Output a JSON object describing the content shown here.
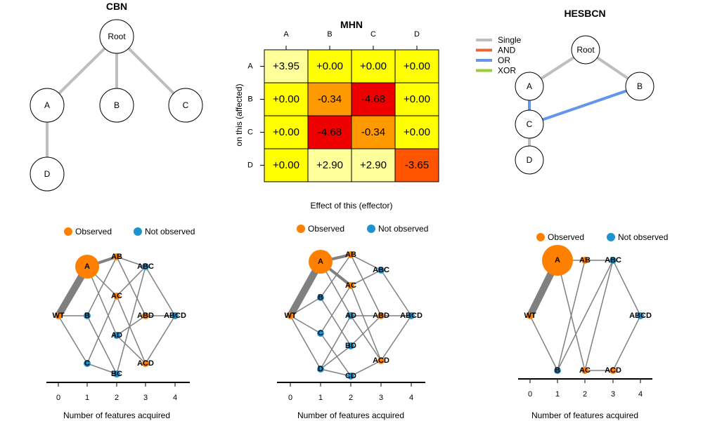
{
  "cbn": {
    "title": "CBN",
    "nodes": [
      {
        "id": "Root",
        "label": "Root"
      },
      {
        "id": "A",
        "label": "A"
      },
      {
        "id": "B",
        "label": "B"
      },
      {
        "id": "C",
        "label": "C"
      },
      {
        "id": "D",
        "label": "D"
      }
    ],
    "edges": [
      [
        "Root",
        "A"
      ],
      [
        "Root",
        "B"
      ],
      [
        "Root",
        "C"
      ],
      [
        "A",
        "D"
      ]
    ],
    "edge_color": "#BEBEBE"
  },
  "mhn": {
    "title": "MHN",
    "col_labels": [
      "A",
      "B",
      "C",
      "D"
    ],
    "row_labels": [
      "A",
      "B",
      "C",
      "D"
    ],
    "values": [
      [
        "+3.95",
        "+0.00",
        "+0.00",
        "+0.00"
      ],
      [
        "+0.00",
        "-0.34",
        "-4.68",
        "+0.00"
      ],
      [
        "+0.00",
        "-4.68",
        "-0.34",
        "+0.00"
      ],
      [
        "+0.00",
        "+2.90",
        "+2.90",
        "-3.65"
      ]
    ],
    "colors": [
      [
        "#FFFF99",
        "#FFFF00",
        "#FFFF00",
        "#FFFF00"
      ],
      [
        "#FFFF00",
        "#FF9900",
        "#EE0000",
        "#FFFF00"
      ],
      [
        "#FFFF00",
        "#EE0000",
        "#FF9900",
        "#FFFF00"
      ],
      [
        "#FFFF00",
        "#FFFF99",
        "#FFFF99",
        "#FF5500"
      ]
    ],
    "xlabel": "Effect of this (effector)",
    "ylabel": "on this (affected)"
  },
  "hesbcn": {
    "title": "HESBCN",
    "legend": [
      {
        "label": "Single",
        "color": "#BEBEBE"
      },
      {
        "label": "AND",
        "color": "#E8673A"
      },
      {
        "label": "OR",
        "color": "#6495ED"
      },
      {
        "label": "XOR",
        "color": "#9ACD32"
      }
    ],
    "nodes": [
      {
        "id": "Root",
        "label": "Root"
      },
      {
        "id": "A",
        "label": "A"
      },
      {
        "id": "B",
        "label": "B"
      },
      {
        "id": "C",
        "label": "C"
      },
      {
        "id": "D",
        "label": "D"
      }
    ],
    "edges": [
      {
        "from": "Root",
        "to": "A",
        "type": "Single"
      },
      {
        "from": "Root",
        "to": "B",
        "type": "Single"
      },
      {
        "from": "A",
        "to": "C",
        "type": "OR"
      },
      {
        "from": "B",
        "to": "C",
        "type": "OR"
      },
      {
        "from": "C",
        "to": "D",
        "type": "Single"
      }
    ]
  },
  "legend_common": {
    "observed": "Observed",
    "not_observed": "Not observed",
    "observed_color": "#FF7F00",
    "not_observed_color": "#1F93D0"
  },
  "graphs": [
    {
      "xlabel": "Number of features acquired",
      "ticks": [
        "0",
        "1",
        "2",
        "3",
        "4"
      ],
      "nodes": [
        {
          "label": "WT",
          "observed": true
        },
        {
          "label": "A",
          "observed": true,
          "big": true
        },
        {
          "label": "B",
          "observed": false
        },
        {
          "label": "C",
          "observed": false
        },
        {
          "label": "AB",
          "observed": true
        },
        {
          "label": "AC",
          "observed": true
        },
        {
          "label": "AD",
          "observed": false
        },
        {
          "label": "BC",
          "observed": false
        },
        {
          "label": "ABC",
          "observed": false
        },
        {
          "label": "ABD",
          "observed": true
        },
        {
          "label": "ACD",
          "observed": true
        },
        {
          "label": "ABCD",
          "observed": false
        }
      ],
      "edges": [
        {
          "from": "WT",
          "to": "A",
          "w": 4
        },
        {
          "from": "WT",
          "to": "B",
          "w": 1
        },
        {
          "from": "WT",
          "to": "C",
          "w": 1
        },
        {
          "from": "A",
          "to": "AB",
          "w": 2
        },
        {
          "from": "A",
          "to": "AC",
          "w": 1
        },
        {
          "from": "A",
          "to": "AD",
          "w": 1
        },
        {
          "from": "B",
          "to": "AB",
          "w": 1
        },
        {
          "from": "B",
          "to": "BC",
          "w": 1
        },
        {
          "from": "C",
          "to": "AC",
          "w": 1
        },
        {
          "from": "C",
          "to": "BC",
          "w": 1
        },
        {
          "from": "AB",
          "to": "ABC",
          "w": 1
        },
        {
          "from": "AB",
          "to": "ABD",
          "w": 1
        },
        {
          "from": "AC",
          "to": "ABC",
          "w": 1
        },
        {
          "from": "AC",
          "to": "ACD",
          "w": 1
        },
        {
          "from": "AD",
          "to": "ABD",
          "w": 1
        },
        {
          "from": "AD",
          "to": "ACD",
          "w": 1
        },
        {
          "from": "BC",
          "to": "ABC",
          "w": 1
        },
        {
          "from": "ABC",
          "to": "ABCD",
          "w": 1
        },
        {
          "from": "ABD",
          "to": "ABCD",
          "w": 1
        },
        {
          "from": "ACD",
          "to": "ABCD",
          "w": 1
        }
      ]
    },
    {
      "xlabel": "Number of features acquired",
      "ticks": [
        "0",
        "1",
        "2",
        "3",
        "4"
      ],
      "nodes": [
        {
          "label": "WT",
          "observed": true
        },
        {
          "label": "A",
          "observed": true,
          "big": true
        },
        {
          "label": "B",
          "observed": false
        },
        {
          "label": "C",
          "observed": false
        },
        {
          "label": "D",
          "observed": false
        },
        {
          "label": "AB",
          "observed": true
        },
        {
          "label": "AC",
          "observed": true
        },
        {
          "label": "AD",
          "observed": false
        },
        {
          "label": "BD",
          "observed": false
        },
        {
          "label": "CD",
          "observed": false
        },
        {
          "label": "ABC",
          "observed": false
        },
        {
          "label": "ABD",
          "observed": true
        },
        {
          "label": "ACD",
          "observed": true
        },
        {
          "label": "ABCD",
          "observed": false
        }
      ],
      "edges": [
        {
          "from": "WT",
          "to": "A",
          "w": 4
        },
        {
          "from": "WT",
          "to": "B",
          "w": 1
        },
        {
          "from": "WT",
          "to": "C",
          "w": 1
        },
        {
          "from": "WT",
          "to": "D",
          "w": 1
        },
        {
          "from": "A",
          "to": "AB",
          "w": 2
        },
        {
          "from": "A",
          "to": "AC",
          "w": 2
        },
        {
          "from": "A",
          "to": "AD",
          "w": 1
        },
        {
          "from": "B",
          "to": "AB",
          "w": 1
        },
        {
          "from": "B",
          "to": "BD",
          "w": 1
        },
        {
          "from": "C",
          "to": "AC",
          "w": 1
        },
        {
          "from": "C",
          "to": "CD",
          "w": 1
        },
        {
          "from": "D",
          "to": "AD",
          "w": 1
        },
        {
          "from": "D",
          "to": "BD",
          "w": 1
        },
        {
          "from": "D",
          "to": "CD",
          "w": 1
        },
        {
          "from": "AB",
          "to": "ABC",
          "w": 1
        },
        {
          "from": "AB",
          "to": "ABD",
          "w": 1
        },
        {
          "from": "AC",
          "to": "ABC",
          "w": 1
        },
        {
          "from": "AC",
          "to": "ACD",
          "w": 1
        },
        {
          "from": "AD",
          "to": "ABD",
          "w": 1
        },
        {
          "from": "AD",
          "to": "ACD",
          "w": 1
        },
        {
          "from": "BD",
          "to": "ABD",
          "w": 1
        },
        {
          "from": "CD",
          "to": "ACD",
          "w": 1
        },
        {
          "from": "ABC",
          "to": "ABCD",
          "w": 1
        },
        {
          "from": "ABD",
          "to": "ABCD",
          "w": 1
        },
        {
          "from": "ACD",
          "to": "ABCD",
          "w": 1
        }
      ]
    },
    {
      "xlabel": "Number of features acquired",
      "ticks": [
        "0",
        "1",
        "2",
        "3",
        "4"
      ],
      "nodes": [
        {
          "label": "WT",
          "observed": true
        },
        {
          "label": "A",
          "observed": true,
          "big": true
        },
        {
          "label": "B",
          "observed": false
        },
        {
          "label": "AB",
          "observed": true
        },
        {
          "label": "AC",
          "observed": true
        },
        {
          "label": "ABC",
          "observed": false
        },
        {
          "label": "ACD",
          "observed": true
        },
        {
          "label": "ABCD",
          "observed": false
        }
      ],
      "edges": [
        {
          "from": "WT",
          "to": "A",
          "w": 4
        },
        {
          "from": "WT",
          "to": "B",
          "w": 1
        },
        {
          "from": "A",
          "to": "AB",
          "w": 1
        },
        {
          "from": "A",
          "to": "AC",
          "w": 1
        },
        {
          "from": "B",
          "to": "AB",
          "w": 1
        },
        {
          "from": "B",
          "to": "ABC",
          "w": 1
        },
        {
          "from": "AB",
          "to": "ABC",
          "w": 1
        },
        {
          "from": "AC",
          "to": "ABC",
          "w": 1
        },
        {
          "from": "AC",
          "to": "ACD",
          "w": 1
        },
        {
          "from": "ABC",
          "to": "ABCD",
          "w": 1
        },
        {
          "from": "ACD",
          "to": "ABCD",
          "w": 1
        }
      ]
    }
  ]
}
